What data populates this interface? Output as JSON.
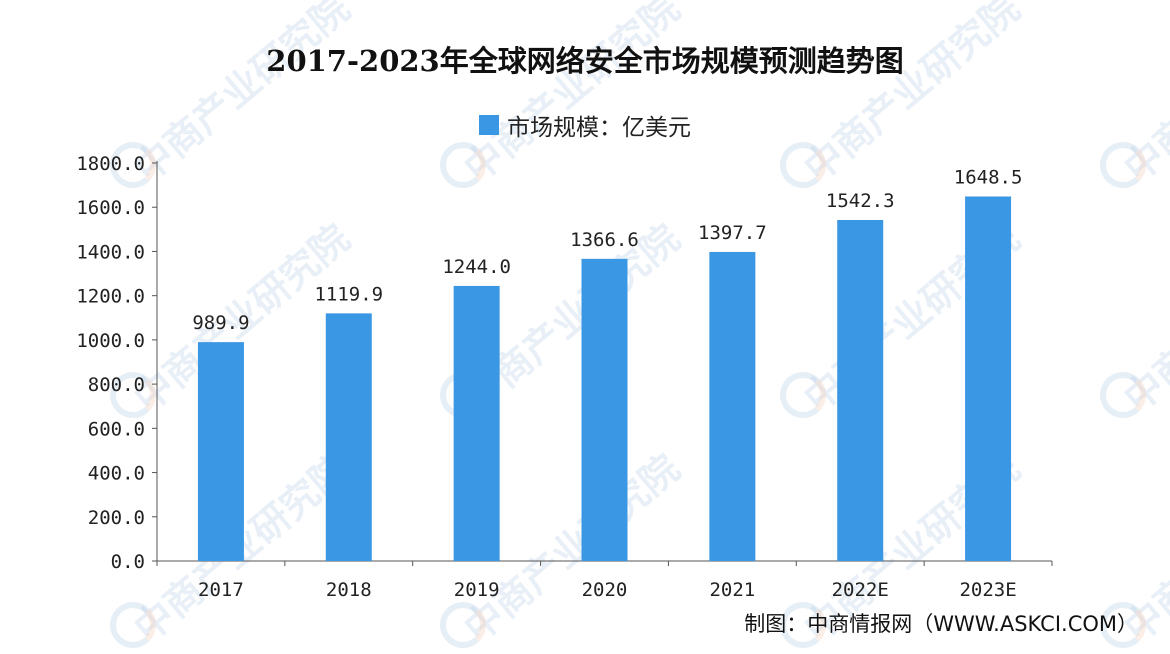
{
  "watermark": {
    "text": "中商产业研究院",
    "color": "#aec9e3"
  },
  "chart_data": {
    "type": "bar",
    "title": "2017-2023年全球网络安全市场规模预测趋势图",
    "legend": [
      {
        "name": "市场规模：亿美元",
        "color": "#3a97e4"
      }
    ],
    "categories": [
      "2017",
      "2018",
      "2019",
      "2020",
      "2021",
      "2022E",
      "2023E"
    ],
    "series": [
      {
        "name": "市场规模：亿美元",
        "values": [
          989.9,
          1119.9,
          1244.0,
          1366.6,
          1397.7,
          1542.3,
          1648.5
        ],
        "color": "#3a97e4"
      }
    ],
    "value_labels": [
      "989.9",
      "1119.9",
      "1244.0",
      "1366.6",
      "1397.7",
      "1542.3",
      "1648.5"
    ],
    "y_ticks": [
      "0.0",
      "200.0",
      "400.0",
      "600.0",
      "800.0",
      "1000.0",
      "1200.0",
      "1400.0",
      "1600.0",
      "1800.0"
    ],
    "ylim": [
      0,
      1800
    ],
    "grid": false,
    "xlabel": "",
    "ylabel": ""
  },
  "source_text": "制图：中商情报网（WWW.ASKCI.COM）"
}
